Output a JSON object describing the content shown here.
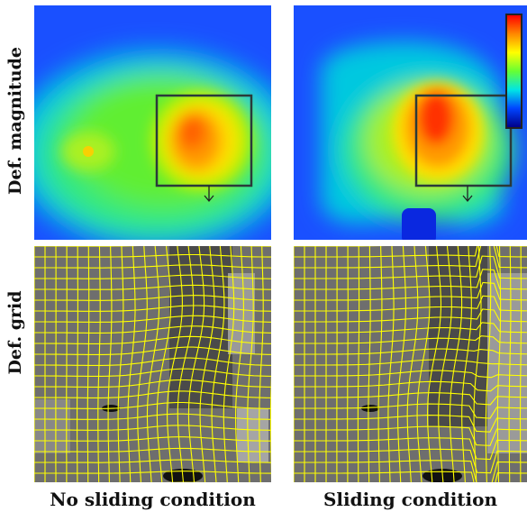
{
  "rows": {
    "top": "Def.  magnitude",
    "bottom": "Def.  grid"
  },
  "columns": {
    "left": "No sliding condition",
    "right": "Sliding condition"
  },
  "colorbar": {
    "colors": [
      "#ff0000",
      "#ff8800",
      "#ffff00",
      "#66ff33",
      "#00e5e5",
      "#0044ff",
      "#00008b"
    ],
    "orientation": "vertical"
  },
  "icons": {
    "zoom_box": "roi-rectangle",
    "arrow": "down-arrow-icon"
  }
}
